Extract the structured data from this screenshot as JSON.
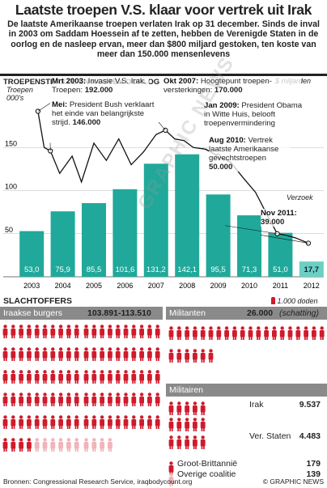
{
  "header": {
    "title": "Laatste troepen V.S. klaar voor vertrek uit Irak",
    "intro": "De laatste Amerikaanse troepen verlaten Irak op 31 december. Sinds de inval in 2003 om Saddam Hoessein af te zetten, hebben de Verenigde Staten in de oorlog en de nasleep ervan, meer dan $800 miljard gestoken, ten koste van meer dan 150.000 mensenlevens"
  },
  "chart_section": {
    "heading": "TROEPENSTERKTE EN KOSTEN OORLOG",
    "unit_label": "$ miljarden",
    "troop_axis_label": "Troepen 000's",
    "forecast_label": "Verzoek"
  },
  "chart_data": {
    "type": "bar",
    "categories": [
      "2003",
      "2004",
      "2005",
      "2006",
      "2007",
      "2008",
      "2009",
      "2010",
      "2011",
      "2012"
    ],
    "values": [
      53.0,
      75.9,
      85.5,
      101.6,
      131.2,
      142.1,
      95.5,
      71.3,
      51.0,
      17.7
    ],
    "value_labels": [
      "53,0",
      "75,9",
      "85,5",
      "101,6",
      "131,2",
      "142,1",
      "95,5",
      "71,3",
      "51,0",
      "17,7"
    ],
    "ylim": [
      0,
      200
    ],
    "yticks": [
      50,
      100,
      150
    ],
    "ytick_labels": [
      "50",
      "100",
      "150"
    ],
    "highlight_last": true,
    "troops_line": {
      "x": [
        2003.2,
        2003.4,
        2003.6,
        2003.9,
        2004.3,
        2004.6,
        2005.0,
        2005.4,
        2005.8,
        2006.2,
        2006.6,
        2007.0,
        2007.3,
        2007.6,
        2007.9,
        2008.2,
        2008.6,
        2009.0,
        2009.4,
        2009.8,
        2010.2,
        2010.6,
        2010.9,
        2011.2,
        2011.5,
        2011.9
      ],
      "y": [
        192,
        150,
        146,
        120,
        140,
        110,
        155,
        135,
        160,
        130,
        145,
        165,
        170,
        160,
        158,
        150,
        148,
        140,
        133,
        115,
        98,
        70,
        50,
        48,
        45,
        39
      ]
    },
    "annotations": [
      {
        "bold": "Mrt 2003:",
        "text": " Invasie V.S. Irak. Troepen: ",
        "value": "192.000"
      },
      {
        "bold": "Mei:",
        "text": " President Bush verklaart het einde van belangrijkste strijd. ",
        "value": "146.000"
      },
      {
        "bold": "Okt 2007:",
        "text": " Hoogtepunt troepen-versterkingen: ",
        "value": "170.000"
      },
      {
        "bold": "Jan 2009:",
        "text": " President Obama in Witte Huis, belooft troepenvermindering",
        "value": ""
      },
      {
        "bold": "Aug 2010:",
        "text": " Vertrek laatste Amerikaanse gevechtstroepen ",
        "value": "50.000"
      },
      {
        "bold": "Nov 2011:",
        "text": " ",
        "value": "39.000"
      }
    ]
  },
  "casualties": {
    "heading": "SLACHTOFFERS",
    "legend": "1.000 doden",
    "civilians": {
      "label": "Iraakse burgers",
      "value": "103.891-113.510",
      "full": 104,
      "faded": 10
    },
    "militants": {
      "label": "Militanten",
      "value": "26.000",
      "note": "(schatting)",
      "count": 26
    },
    "military": {
      "label": "Militairen",
      "rows": [
        {
          "label": "Irak",
          "value": "9.537"
        },
        {
          "label": "Ver. Staten",
          "value": "4.483"
        },
        {
          "label": "Groot-Brittannië",
          "value": "179"
        },
        {
          "label": "Overige coalitie",
          "value": "139"
        }
      ]
    }
  },
  "footer": {
    "source": "Bronnen: Congressional Research Service, iraqbodycount.org",
    "credit": "© GRAPHIC NEWS"
  },
  "watermark": "GRAPHIC NEWS",
  "colors": {
    "bar": "#20a99a",
    "bar_last": "#6ccfc4",
    "accent": "#cf1b2b",
    "faded": "#f0b4ba"
  }
}
